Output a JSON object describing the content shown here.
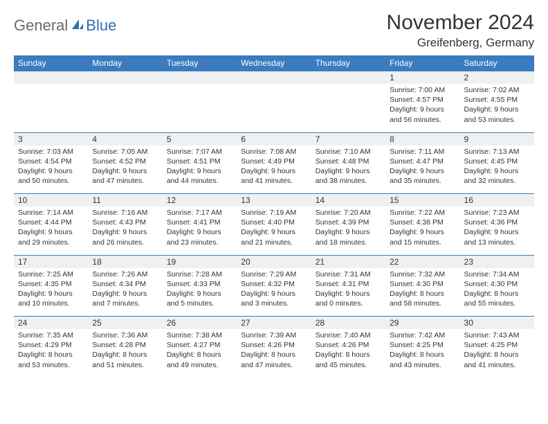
{
  "logo": {
    "general": "General",
    "blue": "Blue"
  },
  "title": "November 2024",
  "location": "Greifenberg, Germany",
  "colors": {
    "header_bg": "#3b7bbf",
    "header_text": "#ffffff",
    "daynum_bg": "#eef0f2",
    "border": "#3b7bbf",
    "text": "#333333",
    "logo_gray": "#6a6a6a",
    "logo_blue": "#2f6fb0"
  },
  "day_headers": [
    "Sunday",
    "Monday",
    "Tuesday",
    "Wednesday",
    "Thursday",
    "Friday",
    "Saturday"
  ],
  "weeks": [
    [
      null,
      null,
      null,
      null,
      null,
      {
        "n": "1",
        "sr": "Sunrise: 7:00 AM",
        "ss": "Sunset: 4:57 PM",
        "dl": "Daylight: 9 hours and 56 minutes."
      },
      {
        "n": "2",
        "sr": "Sunrise: 7:02 AM",
        "ss": "Sunset: 4:55 PM",
        "dl": "Daylight: 9 hours and 53 minutes."
      }
    ],
    [
      {
        "n": "3",
        "sr": "Sunrise: 7:03 AM",
        "ss": "Sunset: 4:54 PM",
        "dl": "Daylight: 9 hours and 50 minutes."
      },
      {
        "n": "4",
        "sr": "Sunrise: 7:05 AM",
        "ss": "Sunset: 4:52 PM",
        "dl": "Daylight: 9 hours and 47 minutes."
      },
      {
        "n": "5",
        "sr": "Sunrise: 7:07 AM",
        "ss": "Sunset: 4:51 PM",
        "dl": "Daylight: 9 hours and 44 minutes."
      },
      {
        "n": "6",
        "sr": "Sunrise: 7:08 AM",
        "ss": "Sunset: 4:49 PM",
        "dl": "Daylight: 9 hours and 41 minutes."
      },
      {
        "n": "7",
        "sr": "Sunrise: 7:10 AM",
        "ss": "Sunset: 4:48 PM",
        "dl": "Daylight: 9 hours and 38 minutes."
      },
      {
        "n": "8",
        "sr": "Sunrise: 7:11 AM",
        "ss": "Sunset: 4:47 PM",
        "dl": "Daylight: 9 hours and 35 minutes."
      },
      {
        "n": "9",
        "sr": "Sunrise: 7:13 AM",
        "ss": "Sunset: 4:45 PM",
        "dl": "Daylight: 9 hours and 32 minutes."
      }
    ],
    [
      {
        "n": "10",
        "sr": "Sunrise: 7:14 AM",
        "ss": "Sunset: 4:44 PM",
        "dl": "Daylight: 9 hours and 29 minutes."
      },
      {
        "n": "11",
        "sr": "Sunrise: 7:16 AM",
        "ss": "Sunset: 4:43 PM",
        "dl": "Daylight: 9 hours and 26 minutes."
      },
      {
        "n": "12",
        "sr": "Sunrise: 7:17 AM",
        "ss": "Sunset: 4:41 PM",
        "dl": "Daylight: 9 hours and 23 minutes."
      },
      {
        "n": "13",
        "sr": "Sunrise: 7:19 AM",
        "ss": "Sunset: 4:40 PM",
        "dl": "Daylight: 9 hours and 21 minutes."
      },
      {
        "n": "14",
        "sr": "Sunrise: 7:20 AM",
        "ss": "Sunset: 4:39 PM",
        "dl": "Daylight: 9 hours and 18 minutes."
      },
      {
        "n": "15",
        "sr": "Sunrise: 7:22 AM",
        "ss": "Sunset: 4:38 PM",
        "dl": "Daylight: 9 hours and 15 minutes."
      },
      {
        "n": "16",
        "sr": "Sunrise: 7:23 AM",
        "ss": "Sunset: 4:36 PM",
        "dl": "Daylight: 9 hours and 13 minutes."
      }
    ],
    [
      {
        "n": "17",
        "sr": "Sunrise: 7:25 AM",
        "ss": "Sunset: 4:35 PM",
        "dl": "Daylight: 9 hours and 10 minutes."
      },
      {
        "n": "18",
        "sr": "Sunrise: 7:26 AM",
        "ss": "Sunset: 4:34 PM",
        "dl": "Daylight: 9 hours and 7 minutes."
      },
      {
        "n": "19",
        "sr": "Sunrise: 7:28 AM",
        "ss": "Sunset: 4:33 PM",
        "dl": "Daylight: 9 hours and 5 minutes."
      },
      {
        "n": "20",
        "sr": "Sunrise: 7:29 AM",
        "ss": "Sunset: 4:32 PM",
        "dl": "Daylight: 9 hours and 3 minutes."
      },
      {
        "n": "21",
        "sr": "Sunrise: 7:31 AM",
        "ss": "Sunset: 4:31 PM",
        "dl": "Daylight: 9 hours and 0 minutes."
      },
      {
        "n": "22",
        "sr": "Sunrise: 7:32 AM",
        "ss": "Sunset: 4:30 PM",
        "dl": "Daylight: 8 hours and 58 minutes."
      },
      {
        "n": "23",
        "sr": "Sunrise: 7:34 AM",
        "ss": "Sunset: 4:30 PM",
        "dl": "Daylight: 8 hours and 55 minutes."
      }
    ],
    [
      {
        "n": "24",
        "sr": "Sunrise: 7:35 AM",
        "ss": "Sunset: 4:29 PM",
        "dl": "Daylight: 8 hours and 53 minutes."
      },
      {
        "n": "25",
        "sr": "Sunrise: 7:36 AM",
        "ss": "Sunset: 4:28 PM",
        "dl": "Daylight: 8 hours and 51 minutes."
      },
      {
        "n": "26",
        "sr": "Sunrise: 7:38 AM",
        "ss": "Sunset: 4:27 PM",
        "dl": "Daylight: 8 hours and 49 minutes."
      },
      {
        "n": "27",
        "sr": "Sunrise: 7:39 AM",
        "ss": "Sunset: 4:26 PM",
        "dl": "Daylight: 8 hours and 47 minutes."
      },
      {
        "n": "28",
        "sr": "Sunrise: 7:40 AM",
        "ss": "Sunset: 4:26 PM",
        "dl": "Daylight: 8 hours and 45 minutes."
      },
      {
        "n": "29",
        "sr": "Sunrise: 7:42 AM",
        "ss": "Sunset: 4:25 PM",
        "dl": "Daylight: 8 hours and 43 minutes."
      },
      {
        "n": "30",
        "sr": "Sunrise: 7:43 AM",
        "ss": "Sunset: 4:25 PM",
        "dl": "Daylight: 8 hours and 41 minutes."
      }
    ]
  ]
}
